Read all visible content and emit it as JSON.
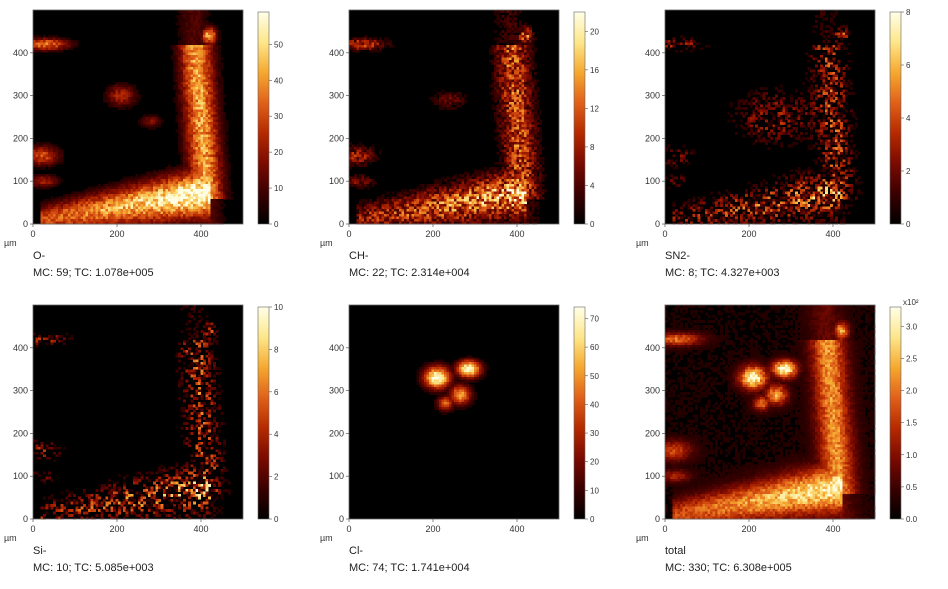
{
  "chart_data": [
    {
      "type": "heatmap",
      "species": "O-",
      "mc_label": "MC:",
      "mc": "59",
      "tc_label": "TC:",
      "tc": "1.078e+005",
      "x_unit": "µm",
      "xticks": [
        "0",
        "200",
        "400"
      ],
      "yticks": [
        "0",
        "100",
        "200",
        "300",
        "400"
      ],
      "colorbar_ticks": [
        "0",
        "10",
        "20",
        "30",
        "40",
        "50"
      ],
      "colorbar_max": 59,
      "xlim": [
        0,
        500
      ],
      "ylim": [
        0,
        500
      ],
      "pattern": "oxygen"
    },
    {
      "type": "heatmap",
      "species": "CH-",
      "mc_label": "MC:",
      "mc": "22",
      "tc_label": "TC:",
      "tc": "2.314e+004",
      "x_unit": "µm",
      "xticks": [
        "0",
        "200",
        "400"
      ],
      "yticks": [
        "0",
        "100",
        "200",
        "300",
        "400"
      ],
      "colorbar_ticks": [
        "0",
        "4",
        "8",
        "12",
        "16",
        "20"
      ],
      "colorbar_max": 22,
      "xlim": [
        0,
        500
      ],
      "ylim": [
        0,
        500
      ],
      "pattern": "ch"
    },
    {
      "type": "heatmap",
      "species": "SN2-",
      "mc_label": "MC:",
      "mc": "8",
      "tc_label": "TC:",
      "tc": "4.327e+003",
      "x_unit": "µm",
      "xticks": [
        "0",
        "200",
        "400"
      ],
      "yticks": [
        "0",
        "100",
        "200",
        "300",
        "400"
      ],
      "colorbar_ticks": [
        "0",
        "2",
        "4",
        "6",
        "8"
      ],
      "colorbar_max": 8,
      "xlim": [
        0,
        500
      ],
      "ylim": [
        0,
        500
      ],
      "pattern": "sn2"
    },
    {
      "type": "heatmap",
      "species": "Si-",
      "mc_label": "MC:",
      "mc": "10",
      "tc_label": "TC:",
      "tc": "5.085e+003",
      "x_unit": "µm",
      "xticks": [
        "0",
        "200",
        "400"
      ],
      "yticks": [
        "0",
        "100",
        "200",
        "300",
        "400"
      ],
      "colorbar_ticks": [
        "0",
        "2",
        "4",
        "6",
        "8",
        "10"
      ],
      "colorbar_max": 10,
      "xlim": [
        0,
        500
      ],
      "ylim": [
        0,
        500
      ],
      "pattern": "si"
    },
    {
      "type": "heatmap",
      "species": "Cl-",
      "mc_label": "MC:",
      "mc": "74",
      "tc_label": "TC:",
      "tc": "1.741e+004",
      "x_unit": "µm",
      "xticks": [
        "0",
        "200",
        "400"
      ],
      "yticks": [
        "0",
        "100",
        "200",
        "300",
        "400"
      ],
      "colorbar_ticks": [
        "0",
        "10",
        "20",
        "30",
        "40",
        "50",
        "60",
        "70"
      ],
      "colorbar_max": 74,
      "xlim": [
        0,
        500
      ],
      "ylim": [
        0,
        500
      ],
      "pattern": "cl"
    },
    {
      "type": "heatmap",
      "species": "total",
      "mc_label": "MC:",
      "mc": "330",
      "tc_label": "TC:",
      "tc": "6.308e+005",
      "x_unit": "µm",
      "xticks": [
        "0",
        "200",
        "400"
      ],
      "yticks": [
        "0",
        "100",
        "200",
        "300",
        "400"
      ],
      "colorbar_ticks": [
        "0.0",
        "0.5",
        "1.0",
        "1.5",
        "2.0",
        "2.5",
        "3.0"
      ],
      "colorbar_exponent": "x10²",
      "colorbar_max": 330,
      "xlim": [
        0,
        500
      ],
      "ylim": [
        0,
        500
      ],
      "pattern": "total"
    }
  ],
  "colormap": [
    "#000000",
    "#3a0000",
    "#7a0a00",
    "#b52a00",
    "#e0601a",
    "#f5a830",
    "#fde68a",
    "#ffffe8"
  ]
}
